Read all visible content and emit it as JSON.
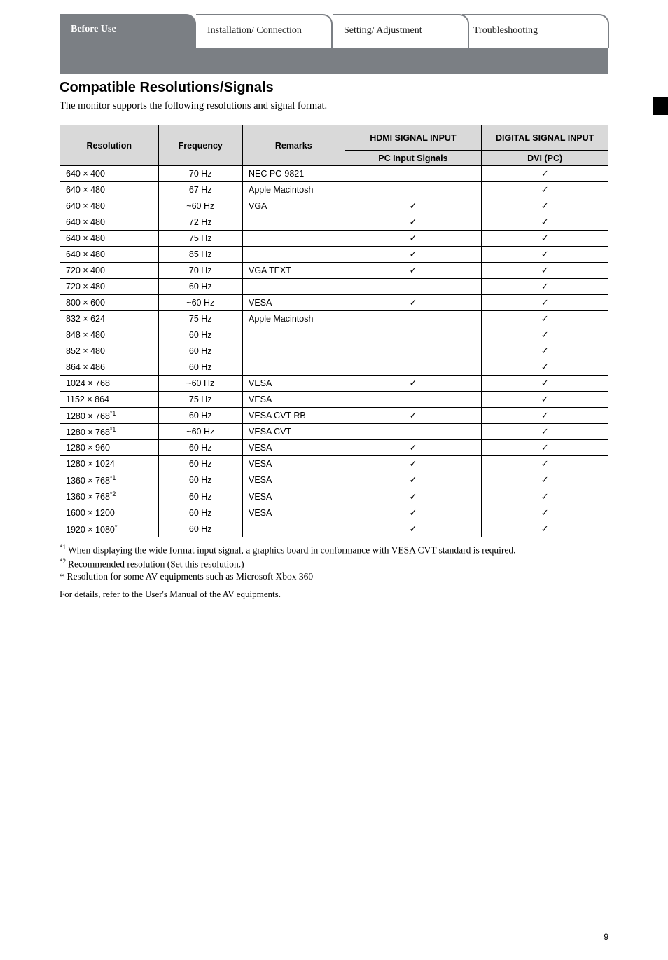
{
  "tabs": [
    {
      "label": "Before Use",
      "active": true
    },
    {
      "label": "Installation/\nConnection",
      "active": false
    },
    {
      "label": "Setting/\nAdjustment",
      "active": false
    },
    {
      "label": "Troubleshooting",
      "active": false
    }
  ],
  "side_flag_color": "#000000",
  "section": {
    "title": "Compatible Resolutions/Signals",
    "intro": "The monitor supports the following resolutions and signal format."
  },
  "table": {
    "columns": [
      "Resolution",
      "Frequency",
      "Remarks",
      "HDMI SIGNAL INPUT",
      "DIGITAL SIGNAL INPUT"
    ],
    "sub_columns": [
      "PC Input Signals",
      "DVI (PC)"
    ],
    "rows": [
      {
        "res": "640 × 400",
        "freq": "70 Hz",
        "rem": "NEC PC-9821",
        "in1": "",
        "in2": "✓"
      },
      {
        "res": "640 × 480",
        "freq": "67 Hz",
        "rem": "Apple Macintosh",
        "in1": "",
        "in2": "✓"
      },
      {
        "res": "640 × 480",
        "freq": "~60 Hz",
        "rem": "VGA",
        "in1": "✓",
        "in2": "✓"
      },
      {
        "res": "640 × 480",
        "freq": "72 Hz",
        "rem": "",
        "in1": "✓",
        "in2": "✓"
      },
      {
        "res": "640 × 480",
        "freq": "75 Hz",
        "rem": "",
        "in1": "✓",
        "in2": "✓"
      },
      {
        "res": "640 × 480",
        "freq": "85 Hz",
        "rem": "",
        "in1": "✓",
        "in2": "✓"
      },
      {
        "res": "720 × 400",
        "freq": "70 Hz",
        "rem": "VGA TEXT",
        "in1": "✓",
        "in2": "✓"
      },
      {
        "res": "720 × 480",
        "freq": "60 Hz",
        "rem": "",
        "in1": "",
        "in2": "✓"
      },
      {
        "res": "800 × 600",
        "freq": "~60 Hz",
        "rem": "VESA",
        "in1": "✓",
        "in2": "✓"
      },
      {
        "res": "832 × 624",
        "freq": "75 Hz",
        "rem": "Apple Macintosh",
        "in1": "",
        "in2": "✓"
      },
      {
        "res": "848 × 480",
        "freq": "60 Hz",
        "rem": "",
        "in1": "",
        "in2": "✓"
      },
      {
        "res": "852 × 480",
        "freq": "60 Hz",
        "rem": "",
        "in1": "",
        "in2": "✓"
      },
      {
        "res": "864 × 486",
        "freq": "60 Hz",
        "rem": "",
        "in1": "",
        "in2": "✓"
      },
      {
        "res": "1024 × 768",
        "freq": "~60 Hz",
        "rem": "VESA",
        "in1": "✓",
        "in2": "✓"
      },
      {
        "res": "1152 × 864",
        "freq": "75 Hz",
        "rem": "VESA",
        "in1": "",
        "in2": "✓"
      },
      {
        "res": "1280 × 768¹",
        "freq": "60 Hz",
        "rem": "VESA CVT RB",
        "in1": "✓",
        "in2": "✓"
      },
      {
        "res": "1280 × 768¹",
        "freq": "~60 Hz",
        "rem": "VESA CVT",
        "in1": "",
        "in2": "✓"
      },
      {
        "res": "1280 × 960",
        "freq": "60 Hz",
        "rem": "VESA",
        "in1": "✓",
        "in2": "✓"
      },
      {
        "res": "1280 × 1024",
        "freq": "60 Hz",
        "rem": "VESA",
        "in1": "✓",
        "in2": "✓"
      },
      {
        "res": "1360 × 768¹",
        "freq": "60 Hz",
        "rem": "VESA",
        "in1": "✓",
        "in2": "✓"
      },
      {
        "res": "1360 × 768²",
        "freq": "60 Hz",
        "rem": "VESA",
        "in1": "✓",
        "in2": "✓"
      },
      {
        "res": "1600 × 1200",
        "freq": "60 Hz",
        "rem": "VESA",
        "in1": "✓",
        "in2": "✓"
      },
      {
        "res": "1920 × 1080*",
        "freq": "60 Hz",
        "rem": "",
        "in1": "✓",
        "in2": "✓"
      }
    ]
  },
  "footnotes": {
    "f1": "When displaying the wide format input signal, a graphics board in conformance with VESA CVT standard is required.",
    "f2": "Recommended resolution (Set this resolution.)",
    "fstar": "Resolution for some AV equipments such as Microsoft Xbox 360",
    "details": "For details, refer to the User's Manual of the AV equipments."
  },
  "page_number": "9",
  "colors": {
    "header_gray": "#7b7f84",
    "tab_border": "#7b7f84",
    "thead_bg": "#d9d9d9",
    "text": "#000000",
    "background": "#ffffff"
  }
}
